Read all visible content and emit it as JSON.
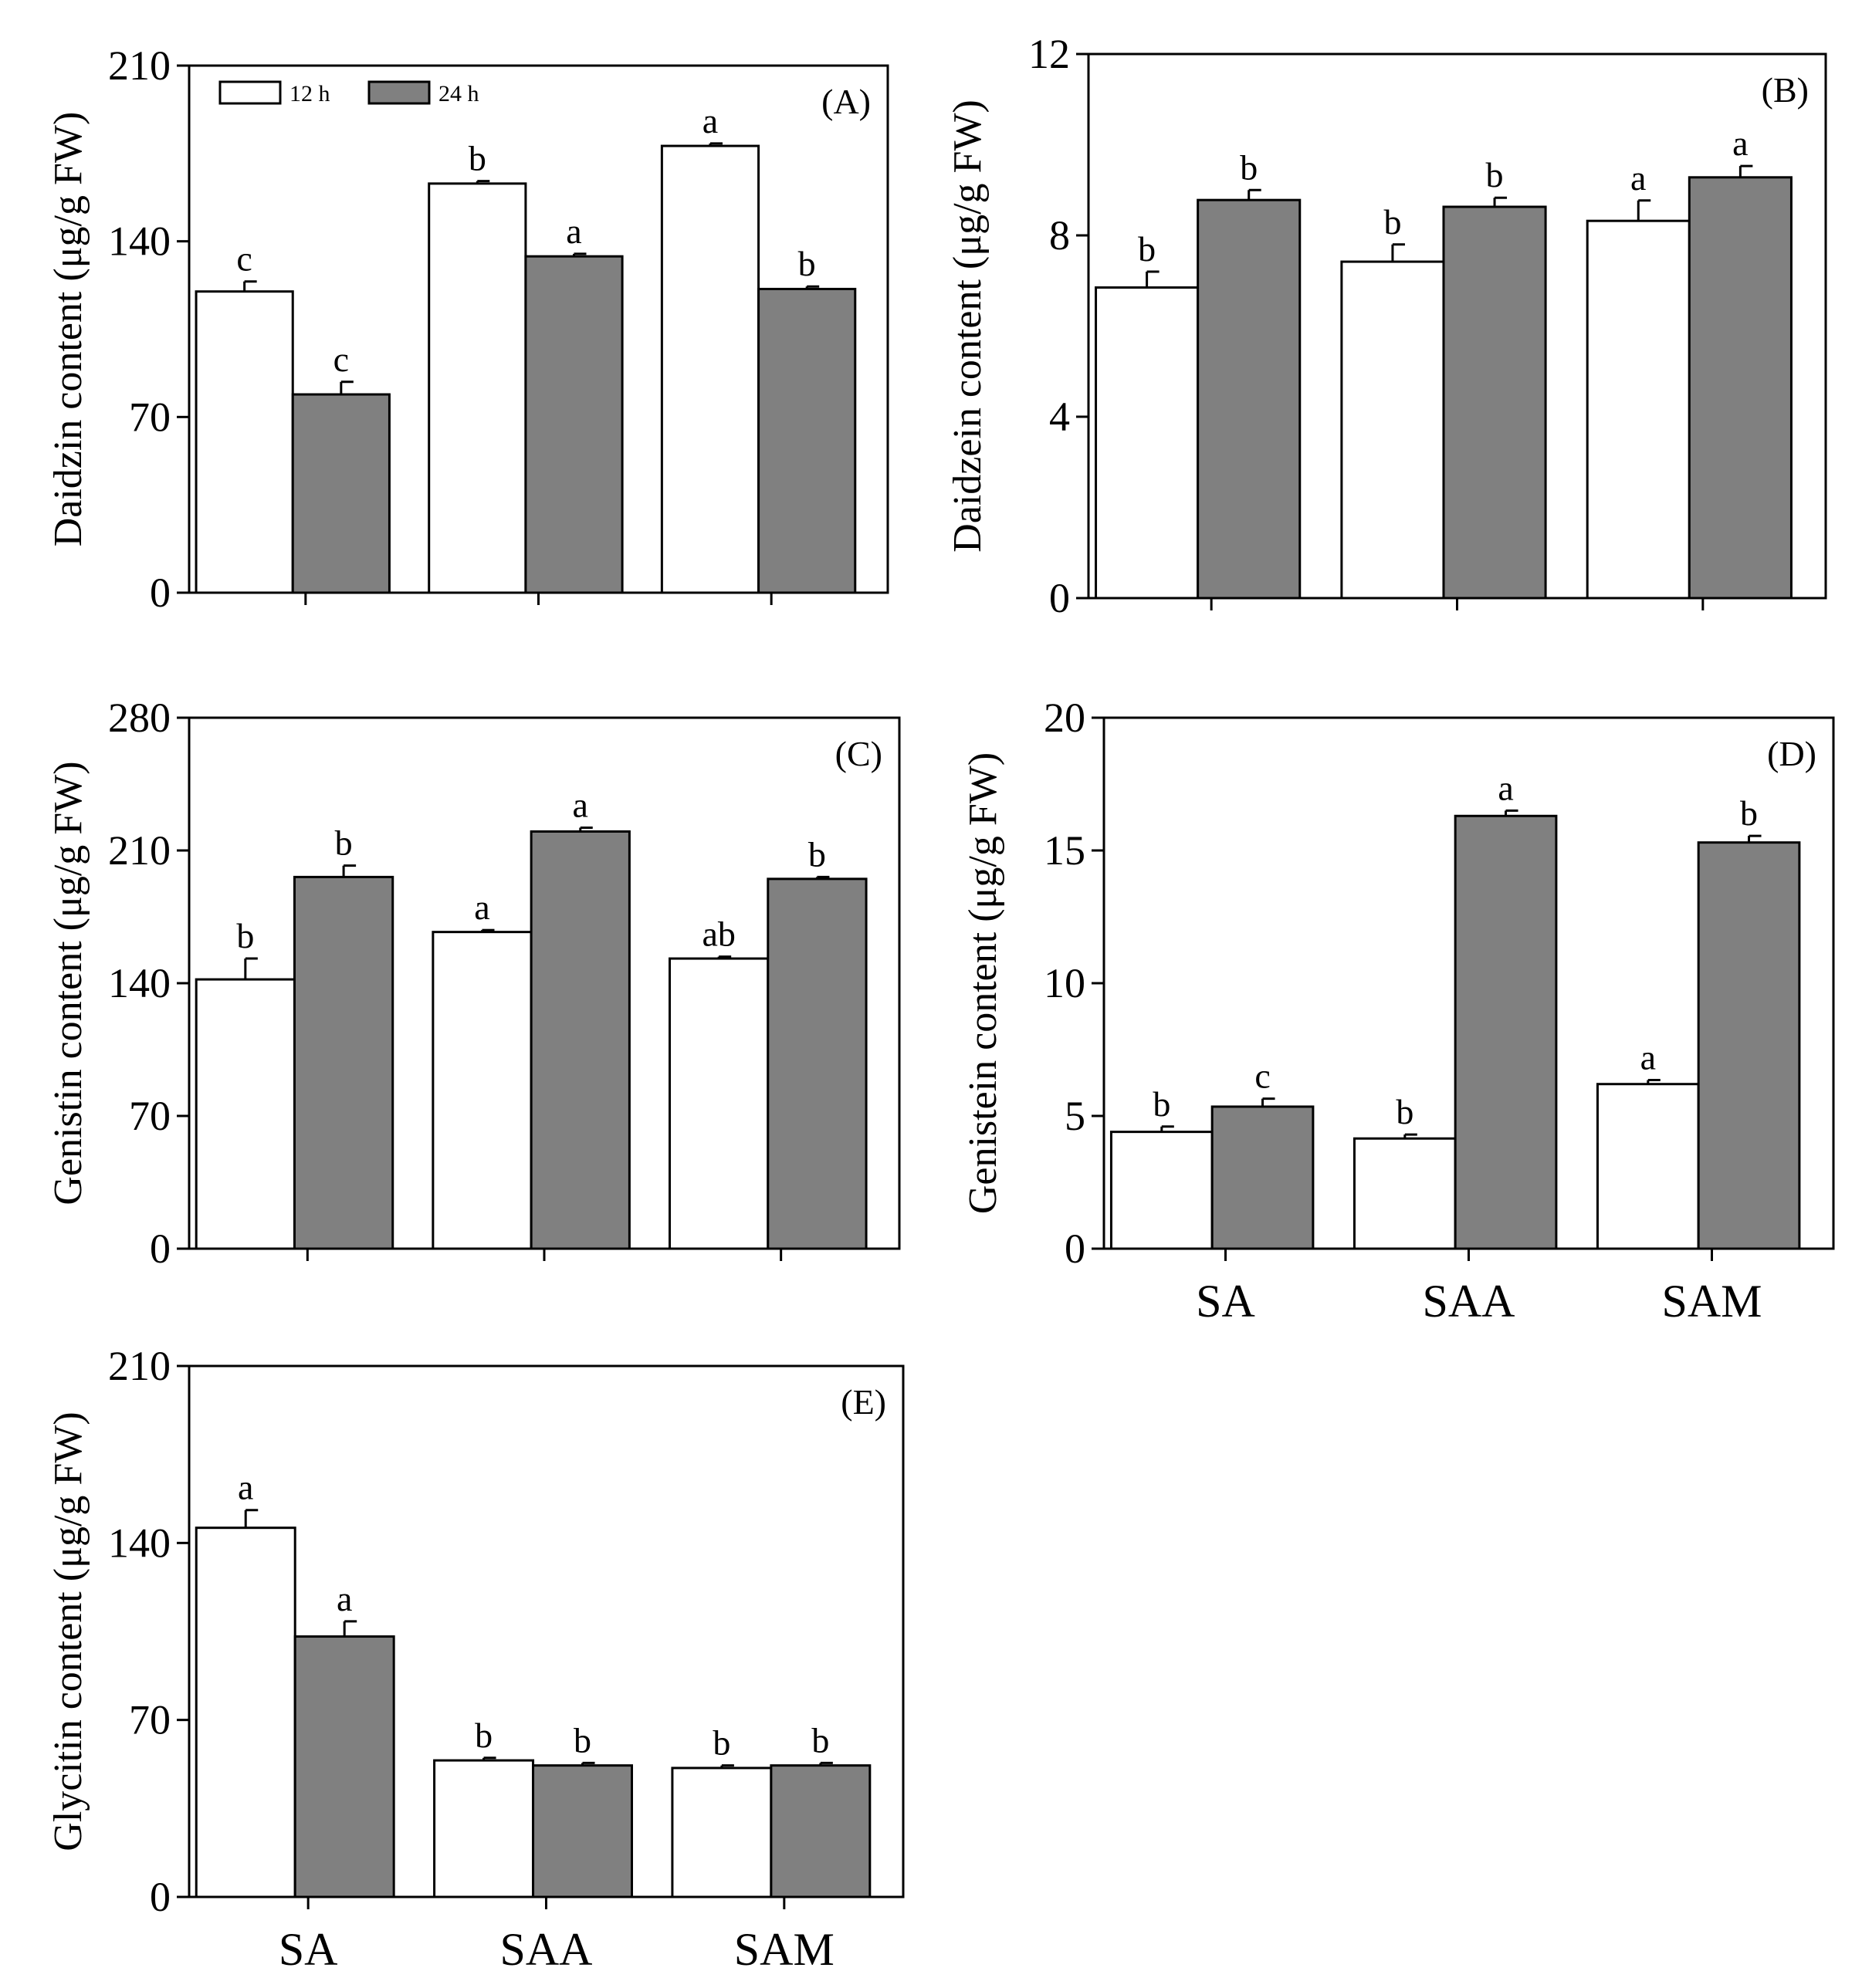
{
  "legend": {
    "series_12h": "12 h",
    "series_24h": "24 h",
    "color_12h": "#ffffff",
    "color_24h": "#808080"
  },
  "chart_data": [
    {
      "type": "bar",
      "panel": "(A)",
      "ylabel": "Daidzin content (μg/g FW)",
      "xlabel": "",
      "categories": [
        "SA",
        "SAA",
        "SAM"
      ],
      "show_category_labels": false,
      "ylim": [
        0,
        210
      ],
      "yticks": [
        0,
        70,
        140,
        210
      ],
      "series": [
        {
          "name": "12 h",
          "values": [
            120,
            163,
            178
          ],
          "errors": [
            4,
            1,
            1
          ],
          "labels": [
            "c",
            "b",
            "a"
          ]
        },
        {
          "name": "24 h",
          "values": [
            79,
            134,
            121
          ],
          "errors": [
            5,
            1,
            1
          ],
          "labels": [
            "c",
            "a",
            "b"
          ]
        }
      ]
    },
    {
      "type": "bar",
      "panel": "(B)",
      "ylabel": "Daidzein content (μg/g FW)",
      "xlabel": "",
      "categories": [
        "SA",
        "SAA",
        "SAM"
      ],
      "show_category_labels": false,
      "ylim": [
        0,
        12
      ],
      "yticks": [
        0,
        4,
        8,
        12
      ],
      "series": [
        {
          "name": "12 h",
          "values": [
            6.85,
            7.42,
            8.32
          ],
          "errors": [
            0.35,
            0.38,
            0.45
          ],
          "labels": [
            "b",
            "b",
            "a"
          ]
        },
        {
          "name": "24 h",
          "values": [
            8.78,
            8.63,
            9.28
          ],
          "errors": [
            0.22,
            0.2,
            0.25
          ],
          "labels": [
            "b",
            "b",
            "a"
          ]
        }
      ]
    },
    {
      "type": "bar",
      "panel": "(C)",
      "ylabel": "Genistin content (μg/g FW)",
      "xlabel": "",
      "categories": [
        "SA",
        "SAA",
        "SAM"
      ],
      "show_category_labels": false,
      "ylim": [
        0,
        280
      ],
      "yticks": [
        0,
        70,
        140,
        210,
        280
      ],
      "series": [
        {
          "name": "12 h",
          "values": [
            142,
            167,
            153
          ],
          "errors": [
            11,
            1,
            1
          ],
          "labels": [
            "b",
            "a",
            "ab"
          ]
        },
        {
          "name": "24 h",
          "values": [
            196,
            220,
            195
          ],
          "errors": [
            6,
            2,
            1
          ],
          "labels": [
            "b",
            "a",
            "b"
          ]
        }
      ]
    },
    {
      "type": "bar",
      "panel": "(D)",
      "ylabel": "Genistein content (μg/g FW)",
      "xlabel": "",
      "categories": [
        "SA",
        "SAA",
        "SAM"
      ],
      "show_category_labels": true,
      "ylim": [
        0,
        20
      ],
      "yticks": [
        0,
        5,
        10,
        15,
        20
      ],
      "series": [
        {
          "name": "12 h",
          "values": [
            4.4,
            4.15,
            6.2
          ],
          "errors": [
            0.2,
            0.15,
            0.15
          ],
          "labels": [
            "b",
            "b",
            "a"
          ]
        },
        {
          "name": "24 h",
          "values": [
            5.35,
            16.3,
            15.3
          ],
          "errors": [
            0.3,
            0.2,
            0.25
          ],
          "labels": [
            "c",
            "a",
            "b"
          ]
        }
      ]
    },
    {
      "type": "bar",
      "panel": "(E)",
      "ylabel": "Glycitin content (μg/g FW)",
      "xlabel": "",
      "categories": [
        "SA",
        "SAA",
        "SAM"
      ],
      "show_category_labels": true,
      "ylim": [
        0,
        210
      ],
      "yticks": [
        0,
        70,
        140,
        210
      ],
      "series": [
        {
          "name": "12 h",
          "values": [
            146,
            54,
            51
          ],
          "errors": [
            7,
            1,
            1
          ],
          "labels": [
            "a",
            "b",
            "b"
          ]
        },
        {
          "name": "24 h",
          "values": [
            103,
            52,
            52
          ],
          "errors": [
            6,
            1,
            1
          ],
          "labels": [
            "a",
            "b",
            "b"
          ]
        }
      ]
    }
  ]
}
